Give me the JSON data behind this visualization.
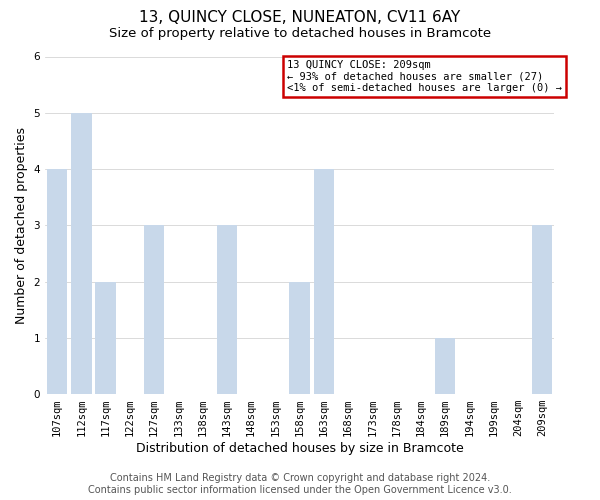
{
  "title": "13, QUINCY CLOSE, NUNEATON, CV11 6AY",
  "subtitle": "Size of property relative to detached houses in Bramcote",
  "xlabel": "Distribution of detached houses by size in Bramcote",
  "ylabel": "Number of detached properties",
  "categories": [
    "107sqm",
    "112sqm",
    "117sqm",
    "122sqm",
    "127sqm",
    "133sqm",
    "138sqm",
    "143sqm",
    "148sqm",
    "153sqm",
    "158sqm",
    "163sqm",
    "168sqm",
    "173sqm",
    "178sqm",
    "184sqm",
    "189sqm",
    "194sqm",
    "199sqm",
    "204sqm",
    "209sqm"
  ],
  "values": [
    4,
    5,
    2,
    0,
    3,
    0,
    0,
    3,
    0,
    0,
    2,
    4,
    0,
    0,
    0,
    0,
    1,
    0,
    0,
    0,
    3
  ],
  "highlight_index": 20,
  "bar_color": "#c8d8ea",
  "bar_edge_color": "none",
  "ylim": [
    0,
    6
  ],
  "yticks": [
    0,
    1,
    2,
    3,
    4,
    5,
    6
  ],
  "legend_title": "13 QUINCY CLOSE: 209sqm",
  "legend_line1": "← 93% of detached houses are smaller (27)",
  "legend_line2": "<1% of semi-detached houses are larger (0) →",
  "legend_box_color": "#ffffff",
  "legend_border_color": "#cc0000",
  "footer_line1": "Contains HM Land Registry data © Crown copyright and database right 2024.",
  "footer_line2": "Contains public sector information licensed under the Open Government Licence v3.0.",
  "bg_color": "#ffffff",
  "grid_color": "#cccccc",
  "title_fontsize": 11,
  "subtitle_fontsize": 9.5,
  "axis_label_fontsize": 9,
  "tick_fontsize": 7.5,
  "footer_fontsize": 7,
  "red_border_color": "#cc0000",
  "red_border_linewidth": 1.5
}
